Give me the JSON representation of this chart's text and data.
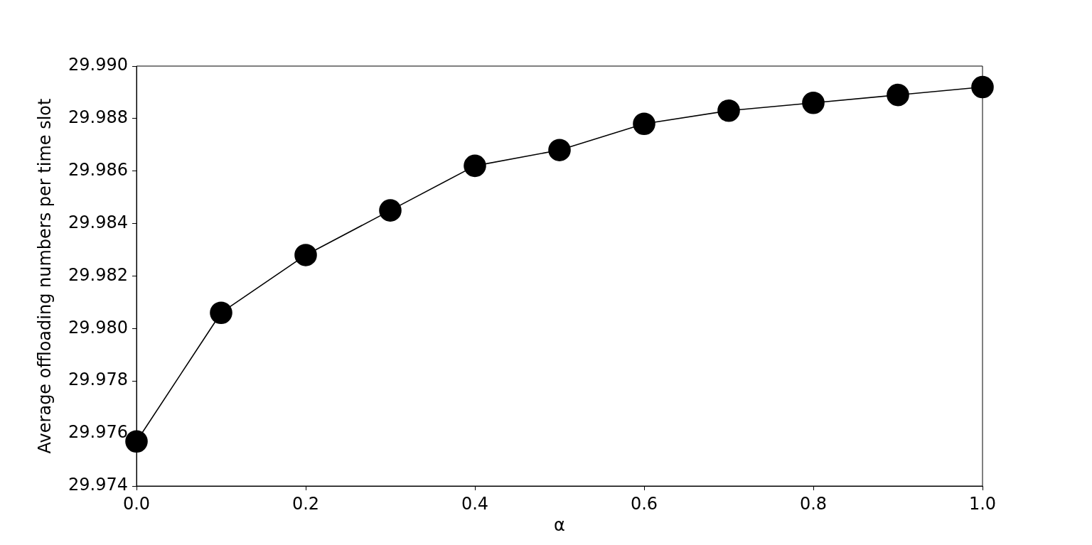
{
  "chart_data": {
    "type": "line",
    "xlabel": "α",
    "ylabel": "Average offloading numbers per time slot",
    "x": [
      0.0,
      0.1,
      0.2,
      0.3,
      0.4,
      0.5,
      0.6,
      0.7,
      0.8,
      0.9,
      1.0
    ],
    "series": [
      {
        "color": "#000000",
        "values": [
          29.9757,
          29.9806,
          29.9828,
          29.9845,
          29.9862,
          29.9868,
          29.9878,
          29.9883,
          29.9886,
          29.9889,
          29.9892
        ]
      }
    ],
    "xlim": [
      0,
      1
    ],
    "xticks": [
      {
        "value": 0,
        "label": "0.0"
      },
      {
        "value": 0.2,
        "label": "0.2"
      },
      {
        "value": 0.4,
        "label": "0.4"
      },
      {
        "value": 0.6,
        "label": "0.6"
      },
      {
        "value": 0.8,
        "label": "0.8"
      },
      {
        "value": 1,
        "label": "1.0"
      }
    ],
    "ylim": [
      29.974,
      29.99
    ],
    "yticks": [
      {
        "value": 29.974,
        "label": "29.974"
      },
      {
        "value": 29.976,
        "label": "29.976"
      },
      {
        "value": 29.978,
        "label": "29.978"
      },
      {
        "value": 29.98,
        "label": "29.980"
      },
      {
        "value": 29.982,
        "label": "29.982"
      },
      {
        "value": 29.984,
        "label": "29.984"
      },
      {
        "value": 29.986,
        "label": "29.986"
      },
      {
        "value": 29.988,
        "label": "29.988"
      },
      {
        "value": 29.99,
        "label": "29.990"
      }
    ],
    "grid": false,
    "legend": false,
    "marker": "circle",
    "line_style": "solid"
  }
}
